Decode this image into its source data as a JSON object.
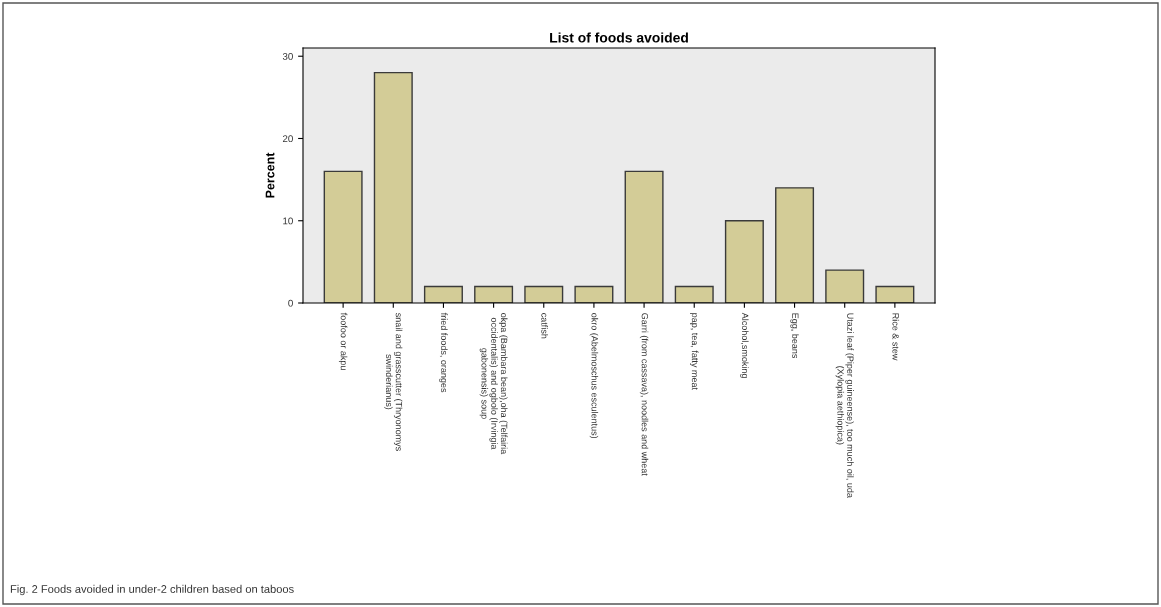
{
  "chart_data": {
    "type": "bar",
    "title": "List of foods avoided",
    "ylabel": "Percent",
    "categories": [
      "foofoo or akpu",
      "snail and grasscutter (Thryonomys\nswinderianus)",
      "fried foods, oranges",
      "okpa (Bambara bean),oha (Telfairia\noccidentalis) and ogbolo (Irvingia\ngabonensis) soup",
      "catfish",
      "okro (Abelmoschus esculentus)",
      "Garri (from cassava), noodles and wheat",
      "pap, tea, fatty meat",
      "Alcohol,smoking",
      "Egg, beans",
      "Utazi leaf (Piper guineense), too much oil, uda\n(Xylopia aethiopica)",
      "Rice & stew"
    ],
    "values": [
      16,
      28,
      2,
      2,
      2,
      2,
      16,
      2,
      10,
      14,
      4,
      2
    ],
    "color": "#d3cc97",
    "ylim": [
      0,
      31
    ],
    "yticks": [
      0,
      10,
      20,
      30
    ],
    "grid": false,
    "legend": false,
    "annotations": [
      "Fig. 2 Foods avoided in under-2 children based on taboos"
    ]
  }
}
